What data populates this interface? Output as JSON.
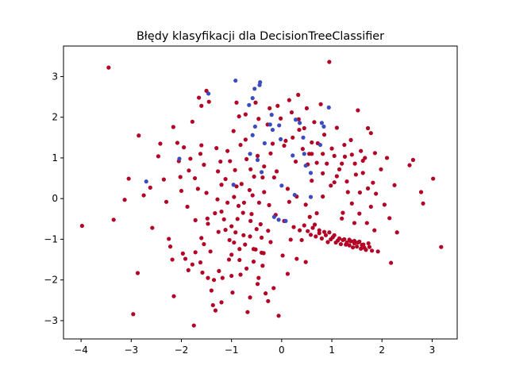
{
  "chart_data": {
    "type": "scatter",
    "title": "Błędy klasyfikacji dla DecisionTreeClassifier",
    "xlabel": "",
    "ylabel": "",
    "xlim": [
      -4.35,
      3.5
    ],
    "ylim": [
      -3.45,
      3.75
    ],
    "xticks": [
      -4,
      -3,
      -2,
      -1,
      0,
      1,
      2,
      3
    ],
    "yticks": [
      -3,
      -2,
      -1,
      0,
      1,
      2,
      3
    ],
    "grid": false,
    "legend": "none",
    "colors": {
      "red": "#b40426",
      "blue": "#3b4cc0"
    },
    "series": [
      {
        "color": "red",
        "points": [
          [
            -3.45,
            3.22
          ],
          [
            -3.98,
            -0.67
          ],
          [
            -3.35,
            -0.52
          ],
          [
            -3.13,
            -0.03
          ],
          [
            -3.05,
            0.49
          ],
          [
            -2.96,
            -2.84
          ],
          [
            -2.87,
            -1.83
          ],
          [
            -2.85,
            1.55
          ],
          [
            -2.75,
            0.08
          ],
          [
            -2.62,
            0.27
          ],
          [
            -2.58,
            -0.72
          ],
          [
            -2.46,
            1.04
          ],
          [
            -2.42,
            1.35
          ],
          [
            -2.35,
            0.47
          ],
          [
            -2.3,
            -0.08
          ],
          [
            -2.25,
            -0.99
          ],
          [
            -2.22,
            -1.18
          ],
          [
            -2.16,
            1.76
          ],
          [
            -2.15,
            -2.4
          ],
          [
            -2.08,
            1.37
          ],
          [
            -1.95,
            1.26
          ],
          [
            -1.92,
            -1.48
          ],
          [
            -1.86,
            -1.76
          ],
          [
            -1.82,
            0.98
          ],
          [
            -1.78,
            1.89
          ],
          [
            -1.75,
            -3.12
          ],
          [
            -1.72,
            -1.32
          ],
          [
            -1.67,
            0.24
          ],
          [
            -1.62,
            -1.57
          ],
          [
            -1.6,
            1.31
          ],
          [
            -1.55,
            -1.12
          ],
          [
            -1.5,
            0.14
          ],
          [
            -1.47,
            -0.62
          ],
          [
            -1.42,
            -1.3
          ],
          [
            -1.4,
            -2.26
          ],
          [
            -1.37,
            -2.62
          ],
          [
            -1.32,
            -2.75
          ],
          [
            -1.28,
            -0.02
          ],
          [
            -1.25,
            -1.78
          ],
          [
            -1.22,
            0.91
          ],
          [
            -1.18,
            -1.95
          ],
          [
            -1.15,
            -0.51
          ],
          [
            -1.12,
            0.48
          ],
          [
            -1.08,
            1.17
          ],
          [
            -1.04,
            -1.02
          ],
          [
            -1.0,
            -1.38
          ],
          [
            -0.98,
            -2.31
          ],
          [
            -0.95,
            0.04
          ],
          [
            -0.92,
            -0.83
          ],
          [
            -0.9,
            2.36
          ],
          [
            -0.86,
            -0.18
          ],
          [
            -0.84,
            -1.51
          ],
          [
            -0.8,
            0.36
          ],
          [
            -0.76,
            -0.9
          ],
          [
            -0.72,
            1.45
          ],
          [
            -0.7,
            -1.72
          ],
          [
            -0.68,
            -2.79
          ],
          [
            -0.64,
            0.21
          ],
          [
            -0.6,
            -0.38
          ],
          [
            -0.56,
            -1.24
          ],
          [
            -0.52,
            2.36
          ],
          [
            -0.48,
            1.05
          ],
          [
            -0.46,
            -1.95
          ],
          [
            -0.42,
            -0.63
          ],
          [
            -0.38,
            0.52
          ],
          [
            -0.36,
            -1.34
          ],
          [
            -0.32,
            -2.33
          ],
          [
            -0.28,
            1.82
          ],
          [
            -0.25,
            -0.16
          ],
          [
            -0.22,
            -1.07
          ],
          [
            -0.18,
            1.35
          ],
          [
            -0.16,
            -2.2
          ],
          [
            -0.12,
            -0.4
          ],
          [
            -0.1,
            0.67
          ],
          [
            -0.06,
            -2.88
          ],
          [
            -0.02,
            1.97
          ],
          [
            0.02,
            -1.4
          ],
          [
            0.05,
            -0.55
          ],
          [
            0.08,
            1.42
          ],
          [
            0.12,
            -1.85
          ],
          [
            0.15,
            -0.08
          ],
          [
            0.18,
            -1.01
          ],
          [
            0.2,
            2.12
          ],
          [
            0.24,
            -0.7
          ],
          [
            0.28,
            0.91
          ],
          [
            0.3,
            -1.48
          ],
          [
            0.34,
            1.95
          ],
          [
            0.36,
            -0.78
          ],
          [
            0.4,
            -1.02
          ],
          [
            0.42,
            1.22
          ],
          [
            0.45,
            -0.66
          ],
          [
            0.48,
            -1.56
          ],
          [
            0.5,
            2.22
          ],
          [
            0.52,
            -0.8
          ],
          [
            0.55,
            1.1
          ],
          [
            0.58,
            -0.89
          ],
          [
            0.6,
            0.44
          ],
          [
            0.62,
            -0.72
          ],
          [
            0.65,
            1.88
          ],
          [
            0.68,
            -0.93
          ],
          [
            0.7,
            -0.36
          ],
          [
            0.72,
            1.36
          ],
          [
            0.75,
            -0.85
          ],
          [
            0.78,
            2.32
          ],
          [
            0.8,
            -0.98
          ],
          [
            0.82,
            0.05
          ],
          [
            0.85,
            1.57
          ],
          [
            0.88,
            -0.9
          ],
          [
            0.9,
            0.86
          ],
          [
            0.92,
            -1.07
          ],
          [
            0.95,
            3.36
          ],
          [
            0.98,
            -1.0
          ],
          [
            1.0,
            1.23
          ],
          [
            1.02,
            -0.95
          ],
          [
            1.05,
            0.4
          ],
          [
            1.08,
            -1.08
          ],
          [
            1.1,
            1.74
          ],
          [
            1.12,
            -1.03
          ],
          [
            1.15,
            0.72
          ],
          [
            1.18,
            -1.12
          ],
          [
            1.2,
            -0.49
          ],
          [
            1.22,
            -1.02
          ],
          [
            1.25,
            1.32
          ],
          [
            1.28,
            -1.13
          ],
          [
            1.3,
            -1.08
          ],
          [
            1.32,
            0.16
          ],
          [
            1.35,
            -1.15
          ],
          [
            1.38,
            -1.05
          ],
          [
            1.4,
            1.08
          ],
          [
            1.42,
            -1.2
          ],
          [
            1.45,
            -1.1
          ],
          [
            1.48,
            0.59
          ],
          [
            1.5,
            -1.18
          ],
          [
            1.52,
            -1.08
          ],
          [
            1.55,
            -0.37
          ],
          [
            1.58,
            -1.23
          ],
          [
            1.6,
            -1.14
          ],
          [
            1.62,
            0.93
          ],
          [
            1.65,
            -1.21
          ],
          [
            1.68,
            -1.26
          ],
          [
            1.7,
            -0.6
          ],
          [
            1.72,
            0.25
          ],
          [
            1.75,
            -1.19
          ],
          [
            1.78,
            1.61
          ],
          [
            1.8,
            -1.28
          ],
          [
            1.85,
            -0.78
          ],
          [
            1.88,
            0.12
          ],
          [
            1.92,
            -1.3
          ],
          [
            1.98,
            0.72
          ],
          [
            2.05,
            -0.15
          ],
          [
            2.1,
            1.0
          ],
          [
            2.15,
            -0.48
          ],
          [
            2.18,
            -1.58
          ],
          [
            2.25,
            0.33
          ],
          [
            2.3,
            -0.83
          ],
          [
            2.55,
            0.82
          ],
          [
            2.62,
            0.95
          ],
          [
            2.78,
            0.16
          ],
          [
            2.82,
            -0.12
          ],
          [
            3.02,
            0.49
          ],
          [
            3.18,
            -1.19
          ],
          [
            1.52,
            2.17
          ],
          [
            1.72,
            1.73
          ],
          [
            1.38,
            1.44
          ],
          [
            1.58,
            1.17
          ],
          [
            1.26,
            1.03
          ],
          [
            1.66,
            1.0
          ],
          [
            1.86,
            1.12
          ],
          [
            1.46,
            0.86
          ],
          [
            1.62,
            0.63
          ],
          [
            1.82,
            0.39
          ],
          [
            1.56,
            0.15
          ],
          [
            1.78,
            -0.2
          ],
          [
            -1.5,
            2.65
          ],
          [
            -1.45,
            2.38
          ],
          [
            -1.6,
            2.28
          ],
          [
            -1.65,
            2.48
          ],
          [
            -1.62,
            1.1
          ],
          [
            -1.55,
            0.83
          ],
          [
            -1.3,
            1.24
          ],
          [
            -1.27,
            0.67
          ],
          [
            -1.2,
            0.34
          ],
          [
            -1.03,
            0.92
          ],
          [
            -0.93,
            0.7
          ],
          [
            -1.08,
            -0.1
          ],
          [
            -1.2,
            -0.32
          ],
          [
            -1.33,
            -0.36
          ],
          [
            -1.48,
            -0.49
          ],
          [
            -0.75,
            -0.1
          ],
          [
            -0.58,
            0.08
          ],
          [
            -0.45,
            -0.1
          ],
          [
            -0.35,
            0.16
          ],
          [
            -0.62,
            -0.55
          ],
          [
            -0.77,
            -0.35
          ],
          [
            -0.88,
            -0.5
          ],
          [
            -1.0,
            -0.68
          ],
          [
            -1.12,
            -0.77
          ],
          [
            -1.26,
            -0.82
          ],
          [
            -0.63,
            -0.93
          ],
          [
            -0.5,
            -0.75
          ],
          [
            -0.4,
            -0.96
          ],
          [
            -0.27,
            -0.79
          ],
          [
            -0.52,
            -1.25
          ],
          [
            -0.73,
            -1.13
          ],
          [
            -0.84,
            -1.24
          ],
          [
            -0.95,
            -1.08
          ],
          [
            -1.05,
            -1.5
          ],
          [
            -0.38,
            -1.65
          ],
          [
            -0.56,
            -1.55
          ],
          [
            -0.82,
            -1.87
          ],
          [
            -1.0,
            -1.9
          ],
          [
            -1.47,
            -1.95
          ],
          [
            -1.58,
            -1.82
          ],
          [
            -1.35,
            -2.0
          ],
          [
            -0.48,
            -2.1
          ],
          [
            -0.63,
            -2.43
          ],
          [
            -0.27,
            -2.52
          ],
          [
            -1.2,
            -2.55
          ],
          [
            0.22,
            1.5
          ],
          [
            0.35,
            1.69
          ],
          [
            0.05,
            1.3
          ],
          [
            -0.22,
            1.11
          ],
          [
            -0.35,
            0.79
          ],
          [
            -0.15,
            0.52
          ],
          [
            0.12,
            0.24
          ],
          [
            0.3,
            0.05
          ],
          [
            0.48,
            -0.15
          ],
          [
            0.56,
            -0.45
          ],
          [
            0.66,
            -0.64
          ],
          [
            0.75,
            -0.78
          ],
          [
            0.85,
            -0.82
          ],
          [
            0.95,
            -0.83
          ],
          [
            1.05,
            -0.9
          ],
          [
            1.15,
            -0.98
          ],
          [
            1.25,
            -1.0
          ],
          [
            1.35,
            -1.01
          ],
          [
            1.45,
            -1.04
          ],
          [
            1.55,
            -1.06
          ],
          [
            1.63,
            -1.13
          ],
          [
            1.73,
            -1.1
          ],
          [
            -0.72,
            2.07
          ],
          [
            -0.85,
            2.02
          ],
          [
            -0.96,
            1.66
          ],
          [
            -0.82,
            1.32
          ],
          [
            -0.7,
            0.97
          ],
          [
            -0.62,
            0.72
          ],
          [
            -0.55,
            0.54
          ],
          [
            -0.9,
            0.3
          ],
          [
            -2.05,
            0.92
          ],
          [
            -2.02,
            0.53
          ],
          [
            -1.85,
            0.69
          ],
          [
            -1.73,
            0.5
          ],
          [
            -2.0,
            0.19
          ],
          [
            -1.72,
            -0.53
          ],
          [
            -1.88,
            -0.2
          ],
          [
            -1.6,
            -0.97
          ],
          [
            -1.97,
            -1.35
          ],
          [
            -2.18,
            -1.5
          ],
          [
            -1.78,
            -1.62
          ],
          [
            -0.4,
            -1.33
          ],
          [
            -0.46,
            1.96
          ],
          [
            -0.24,
            2.22
          ],
          [
            -0.08,
            2.28
          ],
          [
            0.15,
            2.42
          ],
          [
            0.33,
            2.55
          ],
          [
            0.45,
            1.73
          ],
          [
            0.6,
            1.38
          ],
          [
            0.82,
            1.1
          ],
          [
            1.05,
            1.05
          ],
          [
            1.2,
            0.86
          ],
          [
            1.1,
            0.55
          ],
          [
            0.98,
            0.32
          ],
          [
            1.3,
            0.42
          ],
          [
            1.4,
            -0.12
          ],
          [
            1.22,
            -0.35
          ],
          [
            1.45,
            -0.6
          ],
          [
            0.82,
            0.62
          ],
          [
            0.7,
            0.88
          ],
          [
            0.6,
            1.1
          ],
          [
            0.52,
            0.84
          ]
        ]
      },
      {
        "color": "blue",
        "points": [
          [
            -0.92,
            2.9
          ],
          [
            -0.43,
            2.86
          ],
          [
            -0.44,
            2.79
          ],
          [
            -0.54,
            2.7
          ],
          [
            -1.46,
            2.58
          ],
          [
            -0.58,
            2.47
          ],
          [
            -0.65,
            2.3
          ],
          [
            0.94,
            2.24
          ],
          [
            -0.2,
            2.06
          ],
          [
            0.28,
            1.94
          ],
          [
            0.36,
            1.86
          ],
          [
            -0.23,
            1.82
          ],
          [
            -0.53,
            1.77
          ],
          [
            -0.05,
            1.8
          ],
          [
            -0.18,
            1.69
          ],
          [
            0.84,
            1.77
          ],
          [
            0.8,
            1.86
          ],
          [
            -0.58,
            1.56
          ],
          [
            -0.02,
            1.46
          ],
          [
            0.43,
            1.5
          ],
          [
            -0.34,
            1.36
          ],
          [
            0.77,
            1.32
          ],
          [
            -0.63,
            1.1
          ],
          [
            0.22,
            1.06
          ],
          [
            0.45,
            1.1
          ],
          [
            -0.48,
            0.95
          ],
          [
            0.48,
            0.81
          ],
          [
            -2.04,
            0.98
          ],
          [
            -0.4,
            0.65
          ],
          [
            0.58,
            0.63
          ],
          [
            -2.7,
            0.42
          ],
          [
            -0.96,
            0.34
          ],
          [
            0.0,
            0.32
          ],
          [
            0.26,
            0.09
          ],
          [
            0.58,
            0.04
          ],
          [
            -0.15,
            -0.45
          ],
          [
            -0.06,
            -0.52
          ],
          [
            0.08,
            -0.55
          ]
        ]
      }
    ]
  }
}
